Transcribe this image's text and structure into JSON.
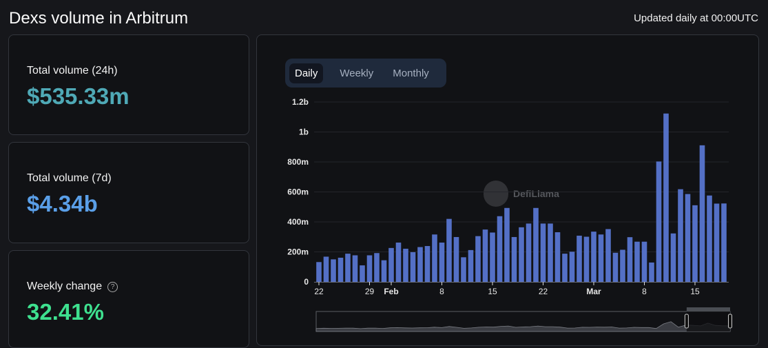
{
  "header": {
    "title": "Dexs volume in Arbitrum",
    "updated": "Updated daily at 00:00UTC"
  },
  "stats": [
    {
      "label": "Total volume (24h)",
      "value": "$535.33m",
      "color": "#4fa9b6"
    },
    {
      "label": "Total volume (7d)",
      "value": "$4.34b",
      "color": "#5a9fe8"
    },
    {
      "label": "Weekly change",
      "value": "32.41%",
      "color": "#3ee08f",
      "help_icon": "question-circle-icon"
    }
  ],
  "toggle": {
    "options": [
      "Daily",
      "Weekly",
      "Monthly"
    ],
    "selected": "Daily"
  },
  "watermark": "DefiLlama",
  "chart_data": {
    "type": "bar",
    "bar_color": "#5470c6",
    "ylim": [
      0,
      1200000000
    ],
    "y_ticks": [
      {
        "value": 0,
        "label": "0"
      },
      {
        "value": 200000000,
        "label": "200m"
      },
      {
        "value": 400000000,
        "label": "400m"
      },
      {
        "value": 600000000,
        "label": "600m"
      },
      {
        "value": 800000000,
        "label": "800m"
      },
      {
        "value": 1000000000,
        "label": "1b"
      },
      {
        "value": 1200000000,
        "label": "1.2b"
      }
    ],
    "x_start": "2024-01-22",
    "x_end": "2024-03-18",
    "x_ticks": [
      {
        "index": 0,
        "label": "22"
      },
      {
        "index": 7,
        "label": "29"
      },
      {
        "index": 10,
        "label": "Feb",
        "bold": true
      },
      {
        "index": 17,
        "label": "8"
      },
      {
        "index": 24,
        "label": "15"
      },
      {
        "index": 31,
        "label": "22"
      },
      {
        "index": 38,
        "label": "Mar",
        "bold": true
      },
      {
        "index": 45,
        "label": "8"
      },
      {
        "index": 52,
        "label": "15"
      }
    ],
    "values_m": [
      132,
      168,
      150,
      161,
      188,
      177,
      110,
      177,
      192,
      144,
      226,
      262,
      221,
      198,
      232,
      239,
      316,
      262,
      420,
      299,
      164,
      212,
      305,
      349,
      329,
      438,
      493,
      299,
      364,
      389,
      493,
      389,
      389,
      331,
      188,
      201,
      308,
      301,
      335,
      316,
      352,
      194,
      214,
      298,
      268,
      268,
      129,
      803,
      1123,
      323,
      618,
      586,
      511,
      911,
      576,
      522,
      523
    ],
    "grid": true,
    "zoom_slider": {
      "start_fraction": 0.895,
      "end_fraction": 1.0
    }
  }
}
